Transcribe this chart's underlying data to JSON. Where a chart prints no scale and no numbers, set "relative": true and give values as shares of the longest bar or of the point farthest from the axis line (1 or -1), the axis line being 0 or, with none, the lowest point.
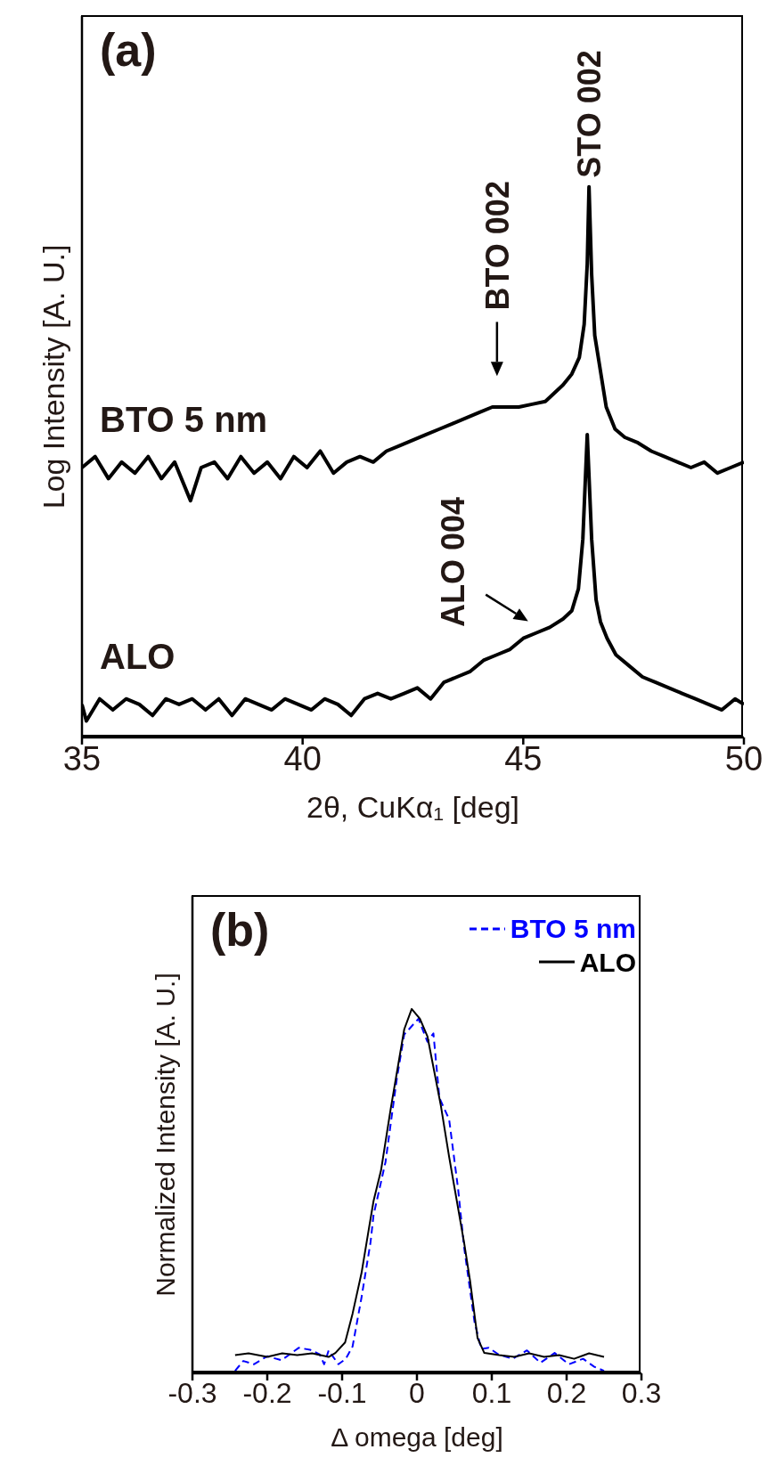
{
  "chart_data": [
    {
      "type": "line",
      "relative": true,
      "xlabel": "2θ, CuKα₁ [deg]",
      "ylabel": "Log Intensity [A. U.]",
      "xlim": [
        35,
        50
      ],
      "xticks": [
        35,
        40,
        45,
        50
      ],
      "annotations": [
        "(a)",
        {
          "text": "STO 002",
          "x": 46.49,
          "y": 1
        },
        "BTO 002",
        "ALO 004"
      ],
      "series": [
        {
          "name": "BTO 5 nm",
          "color": "#000000",
          "x": [
            35.0,
            35.3,
            35.6,
            35.9,
            36.2,
            36.5,
            36.8,
            37.1,
            37.46,
            37.7,
            38.0,
            38.3,
            38.6,
            38.9,
            39.2,
            39.5,
            39.8,
            40.1,
            40.4,
            40.7,
            41.0,
            41.3,
            41.6,
            41.9,
            42.2,
            42.5,
            42.8,
            43.1,
            43.4,
            43.7,
            44.0,
            44.3,
            44.6,
            44.9,
            45.2,
            45.5,
            45.7,
            45.9,
            46.1,
            46.27,
            46.38,
            46.45,
            46.49,
            46.55,
            46.62,
            46.72,
            46.88,
            47.08,
            47.3,
            47.6,
            47.9,
            48.2,
            48.5,
            48.8,
            49.1,
            49.4,
            49.7,
            50.0
          ],
          "values": [
            0.49,
            0.51,
            0.47,
            0.5,
            0.48,
            0.51,
            0.47,
            0.5,
            0.43,
            0.49,
            0.5,
            0.47,
            0.51,
            0.48,
            0.5,
            0.47,
            0.51,
            0.49,
            0.52,
            0.48,
            0.5,
            0.51,
            0.5,
            0.52,
            0.53,
            0.54,
            0.55,
            0.56,
            0.57,
            0.58,
            0.59,
            0.6,
            0.6,
            0.6,
            0.605,
            0.61,
            0.625,
            0.64,
            0.66,
            0.69,
            0.75,
            0.86,
            1,
            0.84,
            0.73,
            0.68,
            0.6,
            0.56,
            0.545,
            0.535,
            0.52,
            0.51,
            0.5,
            0.49,
            0.5,
            0.48,
            0.49,
            0.5
          ]
        },
        {
          "name": "ALO",
          "color": "#000000",
          "x": [
            35.0,
            35.1,
            35.4,
            35.7,
            36.0,
            36.3,
            36.6,
            36.9,
            37.2,
            37.5,
            37.8,
            38.1,
            38.4,
            38.7,
            39.0,
            39.3,
            39.6,
            39.9,
            40.2,
            40.5,
            40.8,
            41.1,
            41.4,
            41.7,
            42.0,
            42.3,
            42.6,
            42.9,
            43.2,
            43.5,
            43.8,
            44.1,
            44.4,
            44.7,
            45.0,
            45.3,
            45.6,
            45.9,
            46.1,
            46.25,
            46.35,
            46.45,
            46.55,
            46.65,
            46.75,
            46.9,
            47.1,
            47.4,
            47.7,
            48.0,
            48.3,
            48.6,
            48.9,
            49.2,
            49.5,
            49.8,
            50.0
          ],
          "values": [
            0.06,
            0.03,
            0.07,
            0.05,
            0.07,
            0.06,
            0.04,
            0.07,
            0.06,
            0.07,
            0.05,
            0.07,
            0.04,
            0.07,
            0.06,
            0.05,
            0.07,
            0.06,
            0.05,
            0.07,
            0.06,
            0.04,
            0.07,
            0.08,
            0.07,
            0.08,
            0.09,
            0.07,
            0.1,
            0.11,
            0.12,
            0.14,
            0.15,
            0.16,
            0.18,
            0.19,
            0.2,
            0.215,
            0.23,
            0.27,
            0.36,
            0.55,
            0.36,
            0.25,
            0.21,
            0.18,
            0.15,
            0.13,
            0.11,
            0.1,
            0.09,
            0.08,
            0.07,
            0.06,
            0.05,
            0.07,
            0.06
          ]
        }
      ]
    },
    {
      "type": "line",
      "relative": true,
      "xlabel": "Δ omega [deg]",
      "ylabel": "Normalized Intensity [A. U.]",
      "xlim": [
        -0.3,
        0.3
      ],
      "xticks": [
        -0.3,
        -0.2,
        -0.1,
        0,
        0.1,
        0.2,
        0.3
      ],
      "legend": "top right",
      "annotations": [
        "(b)"
      ],
      "series": [
        {
          "name": "BTO 5 nm",
          "color": "#0000ff",
          "line_style": "dashed",
          "x": [
            -0.243,
            -0.232,
            -0.218,
            -0.2,
            -0.181,
            -0.158,
            -0.143,
            -0.13,
            -0.124,
            -0.118,
            -0.105,
            -0.095,
            -0.086,
            -0.074,
            -0.062,
            -0.058,
            -0.042,
            -0.027,
            -0.017,
            0.002,
            0.014,
            0.022,
            0.03,
            0.043,
            0.055,
            0.063,
            0.077,
            0.086,
            0.096,
            0.109,
            0.128,
            0.147,
            0.165,
            0.184,
            0.203,
            0.222,
            0.237,
            0.25
          ],
          "values": [
            0.007,
            0.034,
            0.025,
            0.047,
            0.036,
            0.07,
            0.065,
            0.052,
            0.025,
            0.063,
            0.025,
            0.04,
            0.074,
            0.209,
            0.36,
            0.434,
            0.58,
            0.807,
            0.93,
            0.973,
            0.91,
            0.933,
            0.756,
            0.697,
            0.506,
            0.346,
            0.14,
            0.067,
            0.07,
            0.052,
            0.04,
            0.063,
            0.029,
            0.056,
            0.025,
            0.04,
            0.018,
            0.007
          ]
        },
        {
          "name": "ALO",
          "color": "#000000",
          "line_style": "solid",
          "x": [
            -0.243,
            -0.225,
            -0.2,
            -0.18,
            -0.16,
            -0.14,
            -0.118,
            -0.109,
            -0.096,
            -0.086,
            -0.074,
            -0.064,
            -0.058,
            -0.048,
            -0.035,
            -0.017,
            -0.007,
            0.004,
            0.014,
            0.032,
            0.043,
            0.063,
            0.071,
            0.081,
            0.09,
            0.11,
            0.13,
            0.15,
            0.17,
            0.19,
            0.21,
            0.23,
            0.25
          ],
          "values": [
            0.05,
            0.055,
            0.045,
            0.055,
            0.05,
            0.055,
            0.045,
            0.056,
            0.085,
            0.164,
            0.276,
            0.4,
            0.473,
            0.557,
            0.727,
            0.944,
            1,
            0.973,
            0.925,
            0.734,
            0.594,
            0.359,
            0.254,
            0.097,
            0.056,
            0.05,
            0.045,
            0.055,
            0.045,
            0.05,
            0.04,
            0.055,
            0.045
          ]
        }
      ]
    }
  ]
}
